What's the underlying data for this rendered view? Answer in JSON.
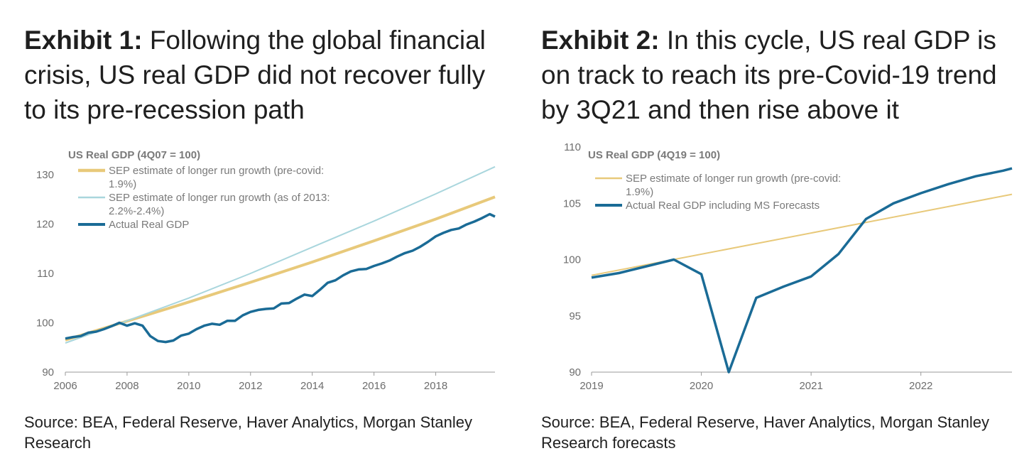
{
  "exhibits": [
    {
      "label": "Exhibit 1:",
      "title": "Following the global financial crisis, US real GDP did not recover fully to its pre-recession path",
      "source": "Source: BEA, Federal Reserve, Haver Analytics, Morgan Stanley Research"
    },
    {
      "label": "Exhibit 2:",
      "title": "In this cycle, US real GDP is on track to reach its pre-Covid-19 trend by 3Q21 and then rise above it",
      "source": "Source: BEA, Federal Reserve, Haver Analytics, Morgan Stanley Research forecasts"
    }
  ],
  "colors": {
    "gold": "#e8c97a",
    "light_blue": "#a9d6dd",
    "dark_blue": "#1a6b96",
    "axis": "#9a9a9a"
  },
  "chart_data": [
    {
      "type": "line",
      "title": "US Real GDP (4Q07 = 100)",
      "xlim": [
        2006,
        2019.92
      ],
      "ylim": [
        90,
        132
      ],
      "x_ticks": [
        2006,
        2008,
        2010,
        2012,
        2014,
        2016,
        2018
      ],
      "y_ticks": [
        90,
        100,
        110,
        120,
        130
      ],
      "grid": false,
      "legend_position": "top-left",
      "series": [
        {
          "name": "SEP estimate of longer run growth (pre-covid: 1.9%)",
          "legend_lines": [
            "SEP estimate of longer run growth (pre-covid:",
            "1.9%)"
          ],
          "color": "#e8c97a",
          "x": [
            2006.0,
            2007.83,
            2010,
            2012,
            2014,
            2016,
            2018,
            2019.92
          ],
          "y": [
            96.5,
            100.0,
            104.2,
            108.2,
            112.3,
            116.6,
            121.0,
            125.5
          ]
        },
        {
          "name": "SEP estimate of longer run growth (as of 2013: 2.2%-2.4%)",
          "legend_lines": [
            "SEP estimate of longer run growth (as of 2013:",
            "2.2%-2.4%)"
          ],
          "color": "#a9d6dd",
          "x": [
            2006.0,
            2007.83,
            2010,
            2012,
            2014,
            2016,
            2018,
            2019.92
          ],
          "y": [
            95.9,
            100.0,
            105.0,
            110.0,
            115.3,
            120.6,
            126.1,
            131.6
          ]
        },
        {
          "name": "Actual Real GDP",
          "legend_lines": [
            "Actual Real GDP"
          ],
          "color": "#1a6b96",
          "x": [
            2006.0,
            2006.25,
            2006.5,
            2006.75,
            2007.0,
            2007.25,
            2007.5,
            2007.75,
            2008.0,
            2008.25,
            2008.5,
            2008.75,
            2009.0,
            2009.25,
            2009.5,
            2009.75,
            2010.0,
            2010.25,
            2010.5,
            2010.75,
            2011.0,
            2011.25,
            2011.5,
            2011.75,
            2012.0,
            2012.25,
            2012.5,
            2012.75,
            2013.0,
            2013.25,
            2013.5,
            2013.75,
            2014.0,
            2014.25,
            2014.5,
            2014.75,
            2015.0,
            2015.25,
            2015.5,
            2015.75,
            2016.0,
            2016.25,
            2016.5,
            2016.75,
            2017.0,
            2017.25,
            2017.5,
            2017.75,
            2018.0,
            2018.25,
            2018.5,
            2018.75,
            2019.0,
            2019.25,
            2019.5,
            2019.75,
            2019.92
          ],
          "y": [
            96.8,
            97.1,
            97.3,
            98.0,
            98.2,
            98.7,
            99.3,
            100.0,
            99.4,
            99.9,
            99.4,
            97.3,
            96.3,
            96.1,
            96.4,
            97.4,
            97.8,
            98.7,
            99.4,
            99.8,
            99.6,
            100.4,
            100.4,
            101.5,
            102.2,
            102.6,
            102.8,
            102.9,
            103.9,
            104.0,
            104.9,
            105.7,
            105.4,
            106.7,
            108.1,
            108.6,
            109.6,
            110.4,
            110.8,
            110.9,
            111.5,
            112.0,
            112.6,
            113.4,
            114.1,
            114.6,
            115.4,
            116.4,
            117.5,
            118.2,
            118.8,
            119.1,
            119.9,
            120.5,
            121.2,
            122.0,
            121.5
          ]
        }
      ]
    },
    {
      "type": "line",
      "title": "US Real GDP (4Q19 = 100)",
      "xlim": [
        2019.0,
        2022.83
      ],
      "ylim": [
        90,
        110
      ],
      "x_ticks": [
        2019,
        2020,
        2021,
        2022
      ],
      "y_ticks": [
        90,
        95,
        100,
        105,
        110
      ],
      "grid": false,
      "legend_position": "top-left",
      "series": [
        {
          "name": "SEP estimate of longer run growth (pre-covid: 1.9%)",
          "legend_lines": [
            "SEP estimate of longer run growth (pre-covid:",
            "1.9%)"
          ],
          "color": "#e8c97a",
          "x": [
            2019.0,
            2022.83
          ],
          "y": [
            98.6,
            105.8
          ]
        },
        {
          "name": "Actual Real GDP including MS Forecasts",
          "legend_lines": [
            "Actual Real GDP including MS Forecasts"
          ],
          "color": "#1a6b96",
          "x": [
            2019.0,
            2019.25,
            2019.5,
            2019.75,
            2020.0,
            2020.25,
            2020.5,
            2020.75,
            2021.0,
            2021.25,
            2021.5,
            2021.75,
            2022.0,
            2022.25,
            2022.5,
            2022.75,
            2022.83
          ],
          "y": [
            98.4,
            98.8,
            99.4,
            100.0,
            98.7,
            90.0,
            96.6,
            97.6,
            98.5,
            100.5,
            103.6,
            105.0,
            105.9,
            106.7,
            107.4,
            107.9,
            108.1
          ]
        }
      ]
    }
  ]
}
